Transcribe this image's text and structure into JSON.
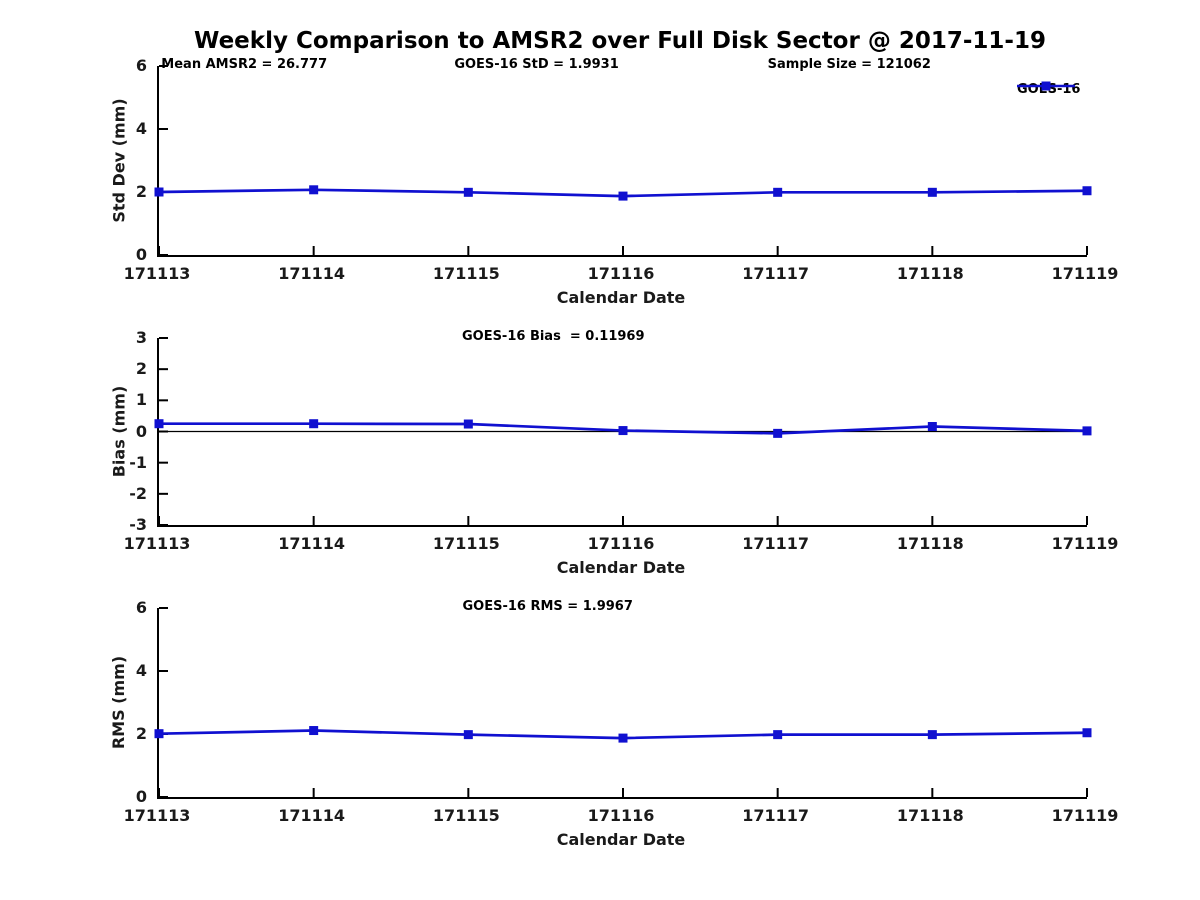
{
  "title": "Weekly Comparison to AMSR2 over Full Disk Sector @ 2017-11-19",
  "legend": {
    "label": "GOES-16",
    "position": "top-right"
  },
  "colors": {
    "line": "#1010d0",
    "axis": "#000000",
    "zero_line": "#000000",
    "text": "#1a1a1a",
    "background": "#ffffff"
  },
  "chart_data": [
    {
      "type": "line",
      "x": [
        "171113",
        "171114",
        "171115",
        "171116",
        "171117",
        "171118",
        "171119"
      ],
      "series": [
        {
          "name": "GOES-16",
          "values": [
            2.0,
            2.07,
            1.99,
            1.87,
            1.99,
            1.99,
            2.04
          ]
        }
      ],
      "xlabel": "Calendar Date",
      "ylabel": "Std Dev (mm)",
      "ylim": [
        0,
        6
      ],
      "yticks": [
        6,
        4,
        2,
        0
      ],
      "grid": false,
      "zero_line": false,
      "annotations": [
        "Mean AMSR2 = 26.777",
        "GOES-16 StD = 1.9931",
        "Sample Size = 121062"
      ],
      "marker": "square"
    },
    {
      "type": "line",
      "x": [
        "171113",
        "171114",
        "171115",
        "171116",
        "171117",
        "171118",
        "171119"
      ],
      "series": [
        {
          "name": "GOES-16",
          "values": [
            0.25,
            0.25,
            0.24,
            0.03,
            -0.06,
            0.16,
            0.02
          ]
        }
      ],
      "xlabel": "Calendar Date",
      "ylabel": "Bias (mm)",
      "ylim": [
        -3,
        3
      ],
      "yticks": [
        3,
        2,
        1,
        0,
        -1,
        -2,
        -3
      ],
      "grid": false,
      "zero_line": true,
      "annotations": [
        "GOES-16 Bias  = 0.11969"
      ],
      "marker": "square"
    },
    {
      "type": "line",
      "x": [
        "171113",
        "171114",
        "171115",
        "171116",
        "171117",
        "171118",
        "171119"
      ],
      "series": [
        {
          "name": "GOES-16",
          "values": [
            2.01,
            2.11,
            1.98,
            1.87,
            1.98,
            1.98,
            2.04
          ]
        }
      ],
      "xlabel": "Calendar Date",
      "ylabel": "RMS (mm)",
      "ylim": [
        0,
        6
      ],
      "yticks": [
        6,
        4,
        2,
        0
      ],
      "grid": false,
      "zero_line": false,
      "annotations": [
        "GOES-16 RMS = 1.9967"
      ],
      "marker": "square"
    }
  ]
}
